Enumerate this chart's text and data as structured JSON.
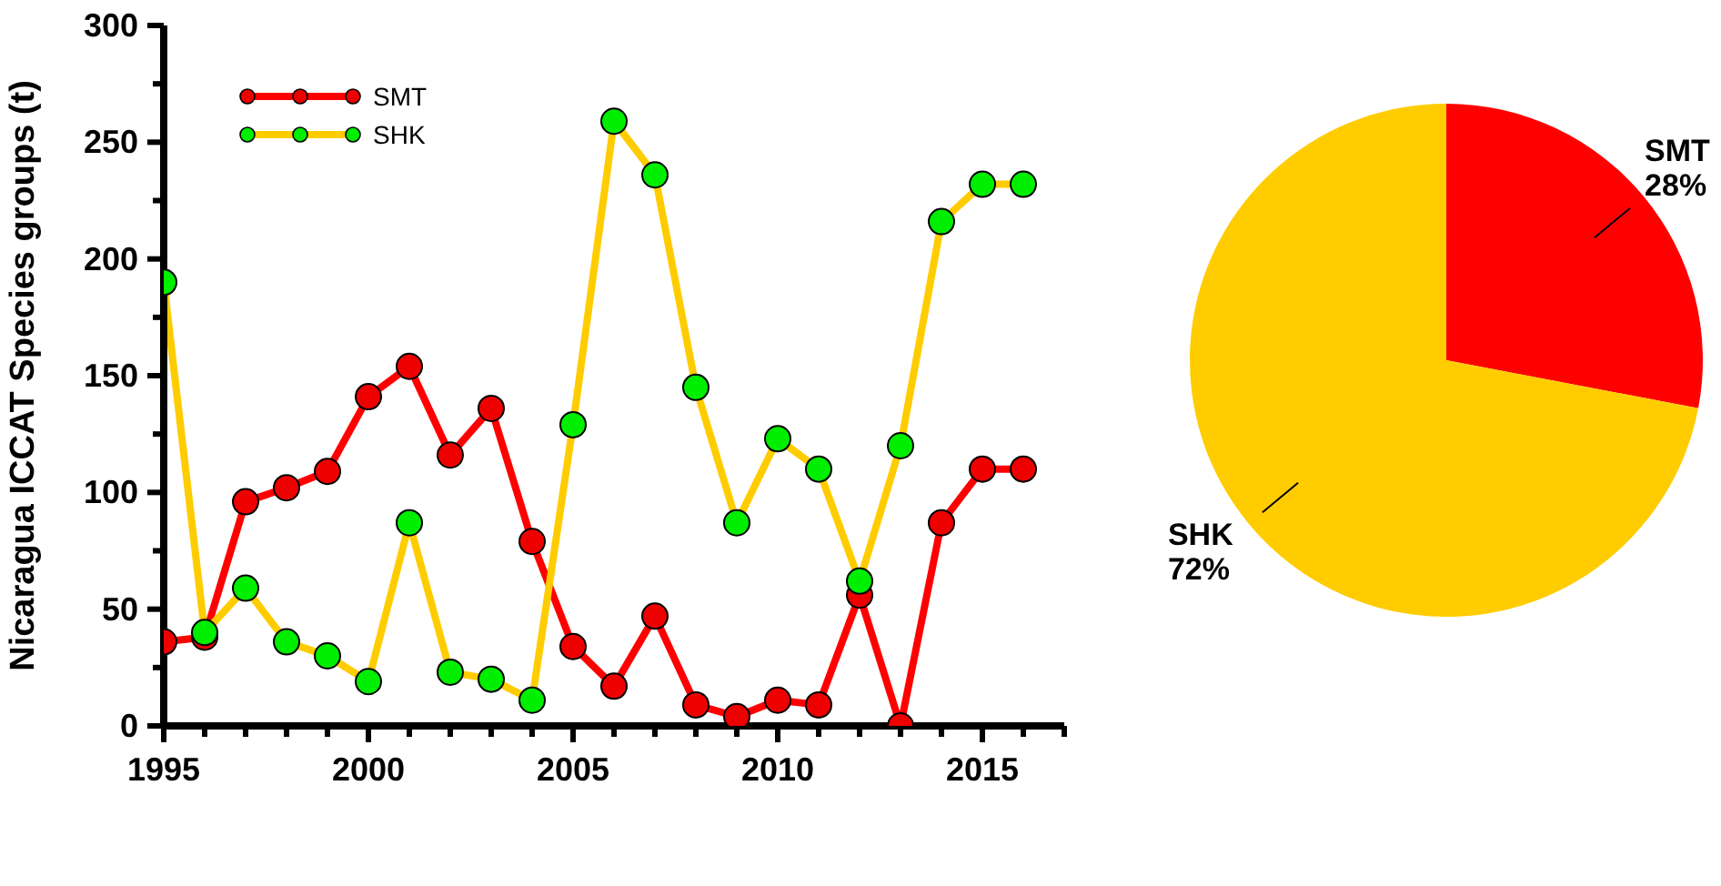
{
  "chart_data": [
    {
      "type": "line",
      "ylabel": "Nicaragua ICCAT Species groups (t)",
      "x": [
        1995,
        1996,
        1997,
        1998,
        1999,
        2000,
        2001,
        2002,
        2003,
        2004,
        2005,
        2006,
        2007,
        2008,
        2009,
        2010,
        2011,
        2012,
        2013,
        2014,
        2015,
        2016
      ],
      "series": [
        {
          "name": "SMT",
          "color": "#ff0000",
          "colors": [
            "#ee0000",
            "#ee0000",
            "#ee0000",
            "#ee0000",
            "#ee0000",
            "#ee0000",
            "#ee0000",
            "#ee0000",
            "#ee0000",
            "#ee0000",
            "#ee0000",
            "#ee0000",
            "#ee0000",
            "#ee0000",
            "#ee0000",
            "#ee0000",
            "#ee0000",
            "#ee0000",
            "#ee0000",
            "#ee0000",
            "#ee0000",
            "#ee0000"
          ],
          "values": [
            36,
            38,
            96,
            102,
            109,
            141,
            154,
            116,
            136,
            79,
            34,
            17,
            47,
            9,
            4,
            11,
            9,
            56,
            0,
            87,
            110,
            110
          ]
        },
        {
          "name": "SHK",
          "color": "#ffcc00",
          "colors": [
            "#00ee00",
            "#00ee00",
            "#00ee00",
            "#00ee00",
            "#00ee00",
            "#00ee00",
            "#00ee00",
            "#00ee00",
            "#00ee00",
            "#00ee00",
            "#00ee00",
            "#00ee00",
            "#00ee00",
            "#00ee00",
            "#00ee00",
            "#00ee00",
            "#00ee00",
            "#00ee00",
            "#00ee00",
            "#00ee00",
            "#00ee00",
            "#00ee00"
          ],
          "values": [
            190,
            40,
            59,
            36,
            30,
            19,
            87,
            23,
            20,
            11,
            129,
            259,
            236,
            145,
            87,
            123,
            110,
            62,
            120,
            216,
            232,
            232
          ]
        }
      ],
      "xlim": [
        1995,
        2017
      ],
      "xticks": [
        1995,
        {
          "value": 1996,
          "label": null
        },
        {
          "value": 1997,
          "label": null
        },
        {
          "value": 1998,
          "label": null
        },
        {
          "value": 1999,
          "label": null
        },
        2000,
        {
          "value": 2001,
          "label": null
        },
        {
          "value": 2002,
          "label": null
        },
        {
          "value": 2003,
          "label": null
        },
        {
          "value": 2004,
          "label": null
        },
        2005,
        {
          "value": 2006,
          "label": null
        },
        {
          "value": 2007,
          "label": null
        },
        {
          "value": 2008,
          "label": null
        },
        {
          "value": 2009,
          "label": null
        },
        2010,
        {
          "value": 2011,
          "label": null
        },
        {
          "value": 2012,
          "label": null
        },
        {
          "value": 2013,
          "label": null
        },
        {
          "value": 2014,
          "label": null
        },
        2015,
        {
          "value": 2016,
          "label": null
        },
        {
          "value": 2017,
          "label": null
        }
      ],
      "ylim": [
        0,
        300
      ],
      "yticks": [
        0,
        {
          "value": 25,
          "label": null
        },
        50,
        {
          "value": 75,
          "label": null
        },
        100,
        {
          "value": 125,
          "label": null
        },
        150,
        {
          "value": 175,
          "label": null
        },
        200,
        {
          "value": 225,
          "label": null
        },
        250,
        {
          "value": 275,
          "label": null
        },
        300
      ],
      "grid": false,
      "legend": "top left",
      "marker": "circle",
      "line_style": "solid"
    },
    {
      "type": "pie",
      "categories": [
        "SMT",
        "SHK"
      ],
      "values": [
        28,
        72
      ],
      "colors": [
        "#ff0000",
        "#ffcc00"
      ],
      "value_labels": [
        "28%",
        "72%"
      ]
    }
  ]
}
